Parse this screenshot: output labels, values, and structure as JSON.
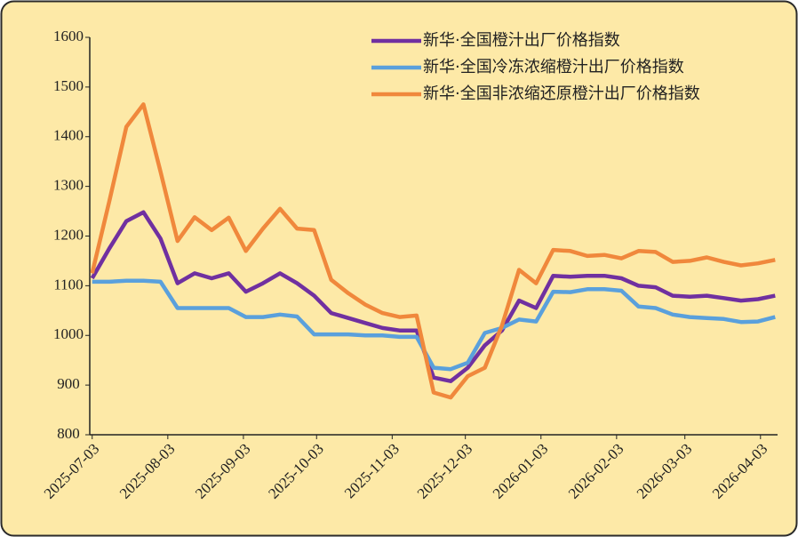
{
  "chart_data": {
    "type": "line",
    "x": [
      "2025-07-03",
      "2025-07-10",
      "2025-07-17",
      "2025-07-24",
      "2025-07-31",
      "2025-08-07",
      "2025-08-14",
      "2025-08-21",
      "2025-08-28",
      "2025-09-04",
      "2025-09-11",
      "2025-09-18",
      "2025-09-25",
      "2025-10-02",
      "2025-10-09",
      "2025-10-16",
      "2025-10-23",
      "2025-10-30",
      "2025-11-06",
      "2025-11-13",
      "2025-11-20",
      "2025-11-27",
      "2025-12-04",
      "2025-12-11",
      "2025-12-18",
      "2025-12-25",
      "2026-01-01",
      "2026-01-08",
      "2026-01-15",
      "2026-01-22",
      "2026-01-29",
      "2026-02-05",
      "2026-02-12",
      "2026-02-19",
      "2026-02-26",
      "2026-03-05",
      "2026-03-12",
      "2026-03-19",
      "2026-03-26",
      "2026-04-02",
      "2026-04-09"
    ],
    "series": [
      {
        "name": "新华·全国橙汁出厂价格指数",
        "color": "#7030a0",
        "values": [
          1115,
          1175,
          1230,
          1248,
          1195,
          1105,
          1125,
          1115,
          1125,
          1088,
          1105,
          1125,
          1105,
          1080,
          1045,
          1035,
          1025,
          1015,
          1010,
          1010,
          915,
          908,
          935,
          980,
          1010,
          1070,
          1055,
          1120,
          1118,
          1120,
          1120,
          1115,
          1100,
          1097,
          1080,
          1078,
          1080,
          1075,
          1070,
          1073,
          1080
        ]
      },
      {
        "name": "新华·全国冷冻浓缩橙汁出厂价格指数",
        "color": "#5aa0dc",
        "values": [
          1108,
          1108,
          1110,
          1110,
          1108,
          1055,
          1055,
          1055,
          1055,
          1037,
          1037,
          1042,
          1038,
          1002,
          1002,
          1002,
          1000,
          1000,
          997,
          997,
          935,
          932,
          945,
          1005,
          1015,
          1032,
          1028,
          1088,
          1087,
          1093,
          1093,
          1090,
          1058,
          1055,
          1042,
          1037,
          1035,
          1033,
          1027,
          1028,
          1037
        ]
      },
      {
        "name": "新华·全国非浓缩还原橙汁出厂价格指数",
        "color": "#f0883c",
        "values": [
          1125,
          1270,
          1420,
          1465,
          1330,
          1190,
          1238,
          1212,
          1237,
          1170,
          1215,
          1255,
          1215,
          1212,
          1112,
          1085,
          1062,
          1045,
          1037,
          1040,
          885,
          875,
          918,
          935,
          1020,
          1132,
          1105,
          1172,
          1170,
          1160,
          1162,
          1155,
          1170,
          1168,
          1148,
          1150,
          1157,
          1148,
          1141,
          1145,
          1152
        ]
      }
    ],
    "xlim": [
      "2025-07-02",
      "2026-04-10"
    ],
    "xticks": [
      "2025-07-03",
      "2025-08-03",
      "2025-09-03",
      "2025-10-03",
      "2025-11-03",
      "2025-12-03",
      "2026-01-03",
      "2026-02-03",
      "2026-03-03",
      "2026-04-03"
    ],
    "ylim": [
      800,
      1600
    ],
    "yticks": [
      800,
      900,
      1000,
      1100,
      1200,
      1300,
      1400,
      1500,
      1600
    ],
    "grid": false,
    "legend": "upper right"
  }
}
